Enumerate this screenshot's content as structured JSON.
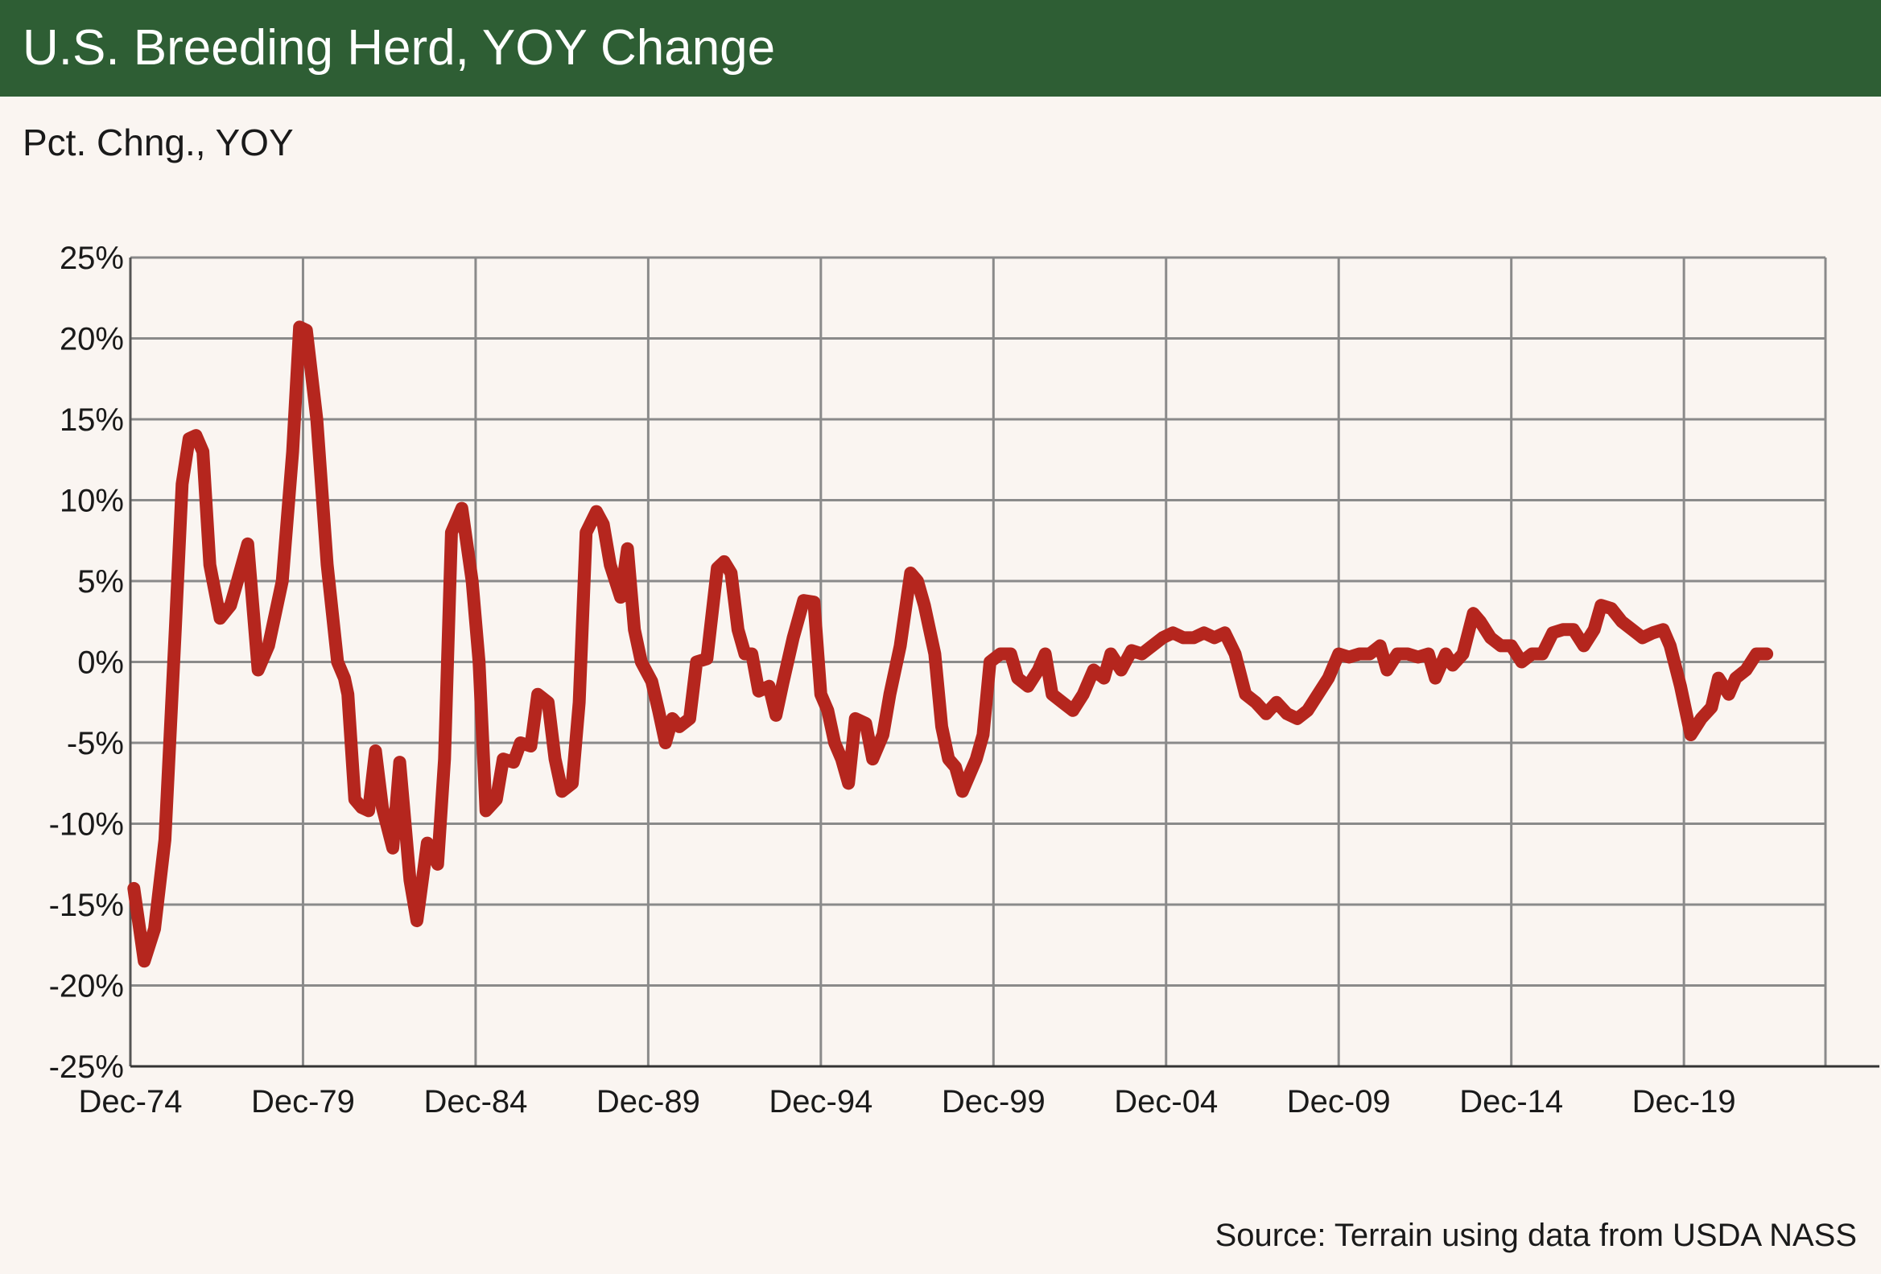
{
  "header": {
    "title": "U.S. Breeding Herd, YOY Change"
  },
  "ylabel": "Pct. Chng., YOY",
  "source": "Source: Terrain using data from USDA NASS",
  "colors": {
    "header_bg": "#2e5e34",
    "background": "#faf5f1",
    "line": "#b5261e",
    "grid": "#8a8a8a"
  },
  "chart_data": {
    "type": "line",
    "title": "U.S. Breeding Herd, YOY Change",
    "ylabel": "Pct. Chng., YOY",
    "xlabel": "",
    "x_unit": "year",
    "ylim": [
      -25,
      25
    ],
    "xlim": [
      1974.9,
      2024.0
    ],
    "yticks": [
      25,
      20,
      15,
      10,
      5,
      0,
      -5,
      -10,
      -15,
      -20,
      -25
    ],
    "ytick_labels": [
      "25%",
      "20%",
      "15%",
      "10%",
      "5%",
      "0%",
      "-5%",
      "-10%",
      "-15%",
      "-20%",
      "-25%"
    ],
    "xticks": [
      1974.9,
      1979.9,
      1984.9,
      1989.9,
      1994.9,
      1999.9,
      2004.9,
      2009.9,
      2014.9,
      2019.9
    ],
    "xtick_labels": [
      "Dec-74",
      "Dec-79",
      "Dec-84",
      "Dec-89",
      "Dec-94",
      "Dec-99",
      "Dec-04",
      "Dec-09",
      "Dec-14",
      "Dec-19"
    ],
    "grid": true,
    "legend": "none",
    "series": [
      {
        "values": [
          [
            1975.0,
            -14.0
          ],
          [
            1975.3,
            -18.5
          ],
          [
            1975.6,
            -16.5
          ],
          [
            1975.9,
            -11.0
          ],
          [
            1976.2,
            2.0
          ],
          [
            1976.4,
            11.0
          ],
          [
            1976.6,
            13.8
          ],
          [
            1976.8,
            14.0
          ],
          [
            1977.0,
            13.0
          ],
          [
            1977.2,
            6.0
          ],
          [
            1977.5,
            2.7
          ],
          [
            1977.8,
            3.5
          ],
          [
            1978.0,
            5.0
          ],
          [
            1978.3,
            7.3
          ],
          [
            1978.6,
            -0.5
          ],
          [
            1978.9,
            1.0
          ],
          [
            1979.3,
            5.0
          ],
          [
            1979.6,
            13.0
          ],
          [
            1979.8,
            20.7
          ],
          [
            1980.0,
            20.5
          ],
          [
            1980.3,
            15.0
          ],
          [
            1980.6,
            6.0
          ],
          [
            1980.9,
            0.0
          ],
          [
            1981.1,
            -1.0
          ],
          [
            1981.2,
            -2.0
          ],
          [
            1981.4,
            -8.5
          ],
          [
            1981.6,
            -9.0
          ],
          [
            1981.8,
            -9.2
          ],
          [
            1982.0,
            -5.5
          ],
          [
            1982.2,
            -9.0
          ],
          [
            1982.5,
            -11.5
          ],
          [
            1982.7,
            -6.2
          ],
          [
            1983.0,
            -13.5
          ],
          [
            1983.2,
            -16.0
          ],
          [
            1983.5,
            -11.2
          ],
          [
            1983.8,
            -12.5
          ],
          [
            1984.0,
            -6.0
          ],
          [
            1984.2,
            8.0
          ],
          [
            1984.5,
            9.5
          ],
          [
            1984.8,
            5.0
          ],
          [
            1985.0,
            0.0
          ],
          [
            1985.2,
            -9.2
          ],
          [
            1985.5,
            -8.5
          ],
          [
            1985.7,
            -6.0
          ],
          [
            1986.0,
            -6.2
          ],
          [
            1986.2,
            -5.0
          ],
          [
            1986.5,
            -5.2
          ],
          [
            1986.7,
            -2.0
          ],
          [
            1987.0,
            -2.5
          ],
          [
            1987.2,
            -6.0
          ],
          [
            1987.4,
            -8.0
          ],
          [
            1987.7,
            -7.5
          ],
          [
            1987.9,
            -2.5
          ],
          [
            1988.1,
            8.0
          ],
          [
            1988.4,
            9.3
          ],
          [
            1988.6,
            8.5
          ],
          [
            1988.8,
            6.0
          ],
          [
            1989.1,
            4.0
          ],
          [
            1989.3,
            7.0
          ],
          [
            1989.5,
            2.0
          ],
          [
            1989.7,
            0.0
          ],
          [
            1990.0,
            -1.2
          ],
          [
            1990.2,
            -3.0
          ],
          [
            1990.4,
            -5.0
          ],
          [
            1990.6,
            -3.5
          ],
          [
            1990.8,
            -4.0
          ],
          [
            1991.1,
            -3.5
          ],
          [
            1991.3,
            0.0
          ],
          [
            1991.6,
            0.2
          ],
          [
            1991.9,
            5.8
          ],
          [
            1992.1,
            6.2
          ],
          [
            1992.3,
            5.5
          ],
          [
            1992.5,
            2.0
          ],
          [
            1992.7,
            0.5
          ],
          [
            1992.9,
            0.5
          ],
          [
            1993.1,
            -1.8
          ],
          [
            1993.4,
            -1.5
          ],
          [
            1993.6,
            -3.3
          ],
          [
            1993.8,
            -1.3
          ],
          [
            1994.1,
            1.5
          ],
          [
            1994.4,
            3.8
          ],
          [
            1994.7,
            3.7
          ],
          [
            1994.9,
            -2.0
          ],
          [
            1995.1,
            -3.0
          ],
          [
            1995.3,
            -5.0
          ],
          [
            1995.5,
            -6.0
          ],
          [
            1995.7,
            -7.5
          ],
          [
            1995.9,
            -3.5
          ],
          [
            1996.2,
            -3.8
          ],
          [
            1996.4,
            -6.0
          ],
          [
            1996.7,
            -4.5
          ],
          [
            1996.9,
            -2.0
          ],
          [
            1997.2,
            1.0
          ],
          [
            1997.5,
            5.5
          ],
          [
            1997.7,
            5.0
          ],
          [
            1997.9,
            3.5
          ],
          [
            1998.2,
            0.5
          ],
          [
            1998.4,
            -4.0
          ],
          [
            1998.6,
            -6.0
          ],
          [
            1998.8,
            -6.5
          ],
          [
            1999.0,
            -8.0
          ],
          [
            1999.2,
            -7.0
          ],
          [
            1999.4,
            -6.0
          ],
          [
            1999.6,
            -4.5
          ],
          [
            1999.8,
            0.0
          ],
          [
            2000.1,
            0.5
          ],
          [
            2000.4,
            0.5
          ],
          [
            2000.6,
            -1.0
          ],
          [
            2000.9,
            -1.5
          ],
          [
            2001.2,
            -0.5
          ],
          [
            2001.4,
            0.5
          ],
          [
            2001.6,
            -2.0
          ],
          [
            2001.9,
            -2.5
          ],
          [
            2002.2,
            -3.0
          ],
          [
            2002.5,
            -2.0
          ],
          [
            2002.8,
            -0.5
          ],
          [
            2003.1,
            -1.0
          ],
          [
            2003.3,
            0.5
          ],
          [
            2003.6,
            -0.5
          ],
          [
            2003.9,
            0.7
          ],
          [
            2004.2,
            0.5
          ],
          [
            2004.5,
            1.0
          ],
          [
            2004.8,
            1.5
          ],
          [
            2005.1,
            1.8
          ],
          [
            2005.4,
            1.5
          ],
          [
            2005.7,
            1.5
          ],
          [
            2006.0,
            1.8
          ],
          [
            2006.3,
            1.5
          ],
          [
            2006.6,
            1.8
          ],
          [
            2006.9,
            0.5
          ],
          [
            2007.2,
            -2.0
          ],
          [
            2007.5,
            -2.5
          ],
          [
            2007.8,
            -3.2
          ],
          [
            2008.1,
            -2.5
          ],
          [
            2008.4,
            -3.2
          ],
          [
            2008.7,
            -3.5
          ],
          [
            2009.0,
            -3.0
          ],
          [
            2009.3,
            -2.0
          ],
          [
            2009.6,
            -1.0
          ],
          [
            2009.9,
            0.5
          ],
          [
            2010.2,
            0.3
          ],
          [
            2010.5,
            0.5
          ],
          [
            2010.8,
            0.5
          ],
          [
            2011.1,
            1.0
          ],
          [
            2011.3,
            -0.5
          ],
          [
            2011.6,
            0.5
          ],
          [
            2011.9,
            0.5
          ],
          [
            2012.2,
            0.3
          ],
          [
            2012.5,
            0.5
          ],
          [
            2012.7,
            -1.0
          ],
          [
            2013.0,
            0.5
          ],
          [
            2013.2,
            -0.2
          ],
          [
            2013.5,
            0.5
          ],
          [
            2013.8,
            3.0
          ],
          [
            2014.0,
            2.5
          ],
          [
            2014.3,
            1.5
          ],
          [
            2014.6,
            1.0
          ],
          [
            2014.9,
            1.0
          ],
          [
            2015.2,
            0.0
          ],
          [
            2015.5,
            0.5
          ],
          [
            2015.8,
            0.5
          ],
          [
            2016.1,
            1.8
          ],
          [
            2016.4,
            2.0
          ],
          [
            2016.7,
            2.0
          ],
          [
            2017.0,
            1.0
          ],
          [
            2017.3,
            2.0
          ],
          [
            2017.5,
            3.5
          ],
          [
            2017.8,
            3.3
          ],
          [
            2018.1,
            2.5
          ],
          [
            2018.4,
            2.0
          ],
          [
            2018.7,
            1.5
          ],
          [
            2019.0,
            1.8
          ],
          [
            2019.3,
            2.0
          ],
          [
            2019.5,
            1.0
          ],
          [
            2019.8,
            -1.5
          ],
          [
            2020.1,
            -4.5
          ],
          [
            2020.4,
            -3.5
          ],
          [
            2020.7,
            -2.8
          ],
          [
            2020.9,
            -1.0
          ],
          [
            2021.2,
            -2.0
          ],
          [
            2021.4,
            -1.0
          ],
          [
            2021.7,
            -0.5
          ],
          [
            2022.0,
            0.5
          ],
          [
            2022.3,
            0.5
          ]
        ]
      }
    ]
  }
}
